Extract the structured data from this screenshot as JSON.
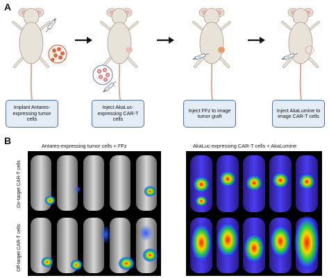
{
  "panel_a": {
    "letter": "A",
    "steps": [
      {
        "label": "Implant Antares-expressing tumor cells"
      },
      {
        "label": "Inject AkaLuc-expressing CAR-T cells"
      },
      {
        "label": "Inject FFz to image tumor graft"
      },
      {
        "label": "Inject AkaLumine to image CAR-T cells"
      }
    ]
  },
  "panel_b": {
    "letter": "B",
    "left_caption": "Antares-expressing tumor cells + FFz",
    "right_caption": "AkaLuc-expressing CAR-T cells + AkaLumine",
    "row_labels": [
      "On-target CAR-T cells",
      "Off-target CAR-T cells"
    ]
  },
  "colors": {
    "box_fill": "#e4ecf6",
    "box_border": "#4a6fa5",
    "mouse_body": "#e9e2d8",
    "mouse_tail": "#d9a7a0",
    "tumor_cell": "#e0643c",
    "car_t_cell": "#d23c3c"
  }
}
